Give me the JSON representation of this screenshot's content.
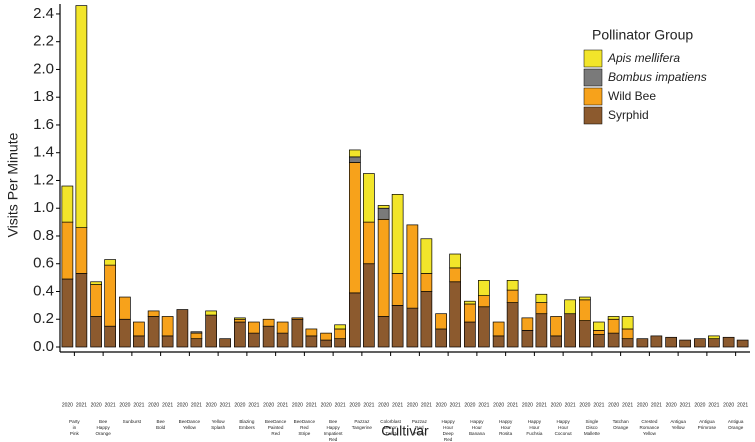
{
  "chart_data": {
    "type": "stacked-bar",
    "y_label": "Visits Per Minute",
    "x_label": "Cultivar",
    "legend_title": "Pollinator Group",
    "legend": "top-right",
    "years": [
      "2020",
      "2021"
    ],
    "categories": [
      [
        "Party",
        "in",
        "Pink"
      ],
      [
        "Bee",
        "Happy",
        "Orange"
      ],
      [
        "Sunburst"
      ],
      [
        "Bee",
        "Bold"
      ],
      [
        "BeeDance",
        "Yellow"
      ],
      [
        "Yellow",
        "Splash"
      ],
      [
        "Blazing",
        "Embers"
      ],
      [
        "BeeDance",
        "Painted",
        "Red"
      ],
      [
        "BeeDance",
        "Red",
        "Stripe"
      ],
      [
        "Bee",
        "Happy",
        "Impatient",
        "Red"
      ],
      [
        "Pazzaz",
        "Tangerine"
      ],
      [
        "Colorblast",
        "Lemon",
        "Twist"
      ],
      [
        "Pazzaz",
        "Red",
        "Flare"
      ],
      [
        "Happy",
        "Hour",
        "Deep",
        "Red"
      ],
      [
        "Happy",
        "Hour",
        "Banana"
      ],
      [
        "Happy",
        "Hour",
        "Rosita"
      ],
      [
        "Happy",
        "Hour",
        "Fuchsia"
      ],
      [
        "Happy",
        "Hour",
        "Coconut"
      ],
      [
        "Single",
        "Disco",
        "Mallette"
      ],
      [
        "Tatchan",
        "Orange"
      ],
      [
        "Crested",
        "Romance",
        "Yellow"
      ],
      [
        "Antigua",
        "Yellow"
      ],
      [
        "Antigua",
        "Primrose"
      ],
      [
        "Antigua",
        "Orange"
      ]
    ],
    "series": [
      {
        "name": "Syrphid",
        "color": "#8c5a2e",
        "values": [
          [
            0.49,
            0.53
          ],
          [
            0.22,
            0.15
          ],
          [
            0.2,
            0.08
          ],
          [
            0.22,
            0.08
          ],
          [
            0.27,
            0.06
          ],
          [
            0.23,
            0.06
          ],
          [
            0.18,
            0.1
          ],
          [
            0.15,
            0.1
          ],
          [
            0.2,
            0.08
          ],
          [
            0.05,
            0.06
          ],
          [
            0.39,
            0.6
          ],
          [
            0.22,
            0.3
          ],
          [
            0.28,
            0.4
          ],
          [
            0.13,
            0.47
          ],
          [
            0.18,
            0.29
          ],
          [
            0.08,
            0.32
          ],
          [
            0.12,
            0.24
          ],
          [
            0.08,
            0.24
          ],
          [
            0.19,
            0.09
          ],
          [
            0.1,
            0.06
          ],
          [
            0.06,
            0.08
          ],
          [
            0.07,
            0.05
          ],
          [
            0.06,
            0.06
          ],
          [
            0.07,
            0.05
          ]
        ]
      },
      {
        "name": "Wild Bee",
        "color": "#f7a21b",
        "values": [
          [
            0.41,
            0.33
          ],
          [
            0.23,
            0.44
          ],
          [
            0.16,
            0.1
          ],
          [
            0.04,
            0.14
          ],
          [
            0,
            0.04
          ],
          [
            0,
            0
          ],
          [
            0.02,
            0.08
          ],
          [
            0.05,
            0.08
          ],
          [
            0.01,
            0.05
          ],
          [
            0.05,
            0.07
          ],
          [
            0.94,
            0.3
          ],
          [
            0.7,
            0.23
          ],
          [
            0.6,
            0.13
          ],
          [
            0.11,
            0.1
          ],
          [
            0.13,
            0.08
          ],
          [
            0.1,
            0.09
          ],
          [
            0.09,
            0.08
          ],
          [
            0.14,
            0
          ],
          [
            0.15,
            0.03
          ],
          [
            0.1,
            0.07
          ],
          [
            0,
            0
          ],
          [
            0,
            0
          ],
          [
            0,
            0
          ],
          [
            0,
            0
          ]
        ]
      },
      {
        "name": "Bombus impatiens",
        "italic": true,
        "color": "#7a7a7a",
        "values": [
          [
            0,
            0
          ],
          [
            0,
            0
          ],
          [
            0,
            0
          ],
          [
            0,
            0
          ],
          [
            0,
            0.01
          ],
          [
            0,
            0
          ],
          [
            0,
            0
          ],
          [
            0,
            0
          ],
          [
            0,
            0
          ],
          [
            0,
            0
          ],
          [
            0.04,
            0
          ],
          [
            0.08,
            0
          ],
          [
            0,
            0
          ],
          [
            0,
            0
          ],
          [
            0,
            0
          ],
          [
            0,
            0
          ],
          [
            0,
            0
          ],
          [
            0,
            0
          ],
          [
            0,
            0
          ],
          [
            0,
            0
          ],
          [
            0,
            0
          ],
          [
            0,
            0
          ],
          [
            0,
            0
          ],
          [
            0,
            0
          ]
        ]
      },
      {
        "name": "Apis mellifera",
        "italic": true,
        "color": "#f2e52a",
        "values": [
          [
            0.26,
            1.6
          ],
          [
            0.02,
            0.04
          ],
          [
            0,
            0
          ],
          [
            0,
            0
          ],
          [
            0,
            0
          ],
          [
            0.03,
            0
          ],
          [
            0.01,
            0
          ],
          [
            0,
            0
          ],
          [
            0,
            0
          ],
          [
            0,
            0.03
          ],
          [
            0.05,
            0.35
          ],
          [
            0.02,
            0.57
          ],
          [
            0,
            0.25
          ],
          [
            0,
            0.1
          ],
          [
            0.02,
            0.11
          ],
          [
            0,
            0.07
          ],
          [
            0,
            0.06
          ],
          [
            0,
            0.1
          ],
          [
            0.02,
            0.06
          ],
          [
            0.02,
            0.09
          ],
          [
            0,
            0
          ],
          [
            0,
            0
          ],
          [
            0,
            0.02
          ],
          [
            0,
            0
          ]
        ]
      }
    ],
    "ylim": [
      0,
      2.45
    ],
    "yticks": [
      {
        "value": 0,
        "label": "0.0"
      },
      0.2,
      0.4,
      0.6,
      0.8,
      {
        "value": 1,
        "label": "1.0"
      },
      1.2,
      1.4,
      1.6,
      1.8,
      {
        "value": 2,
        "label": "2.0"
      },
      2.2,
      2.4
    ]
  }
}
